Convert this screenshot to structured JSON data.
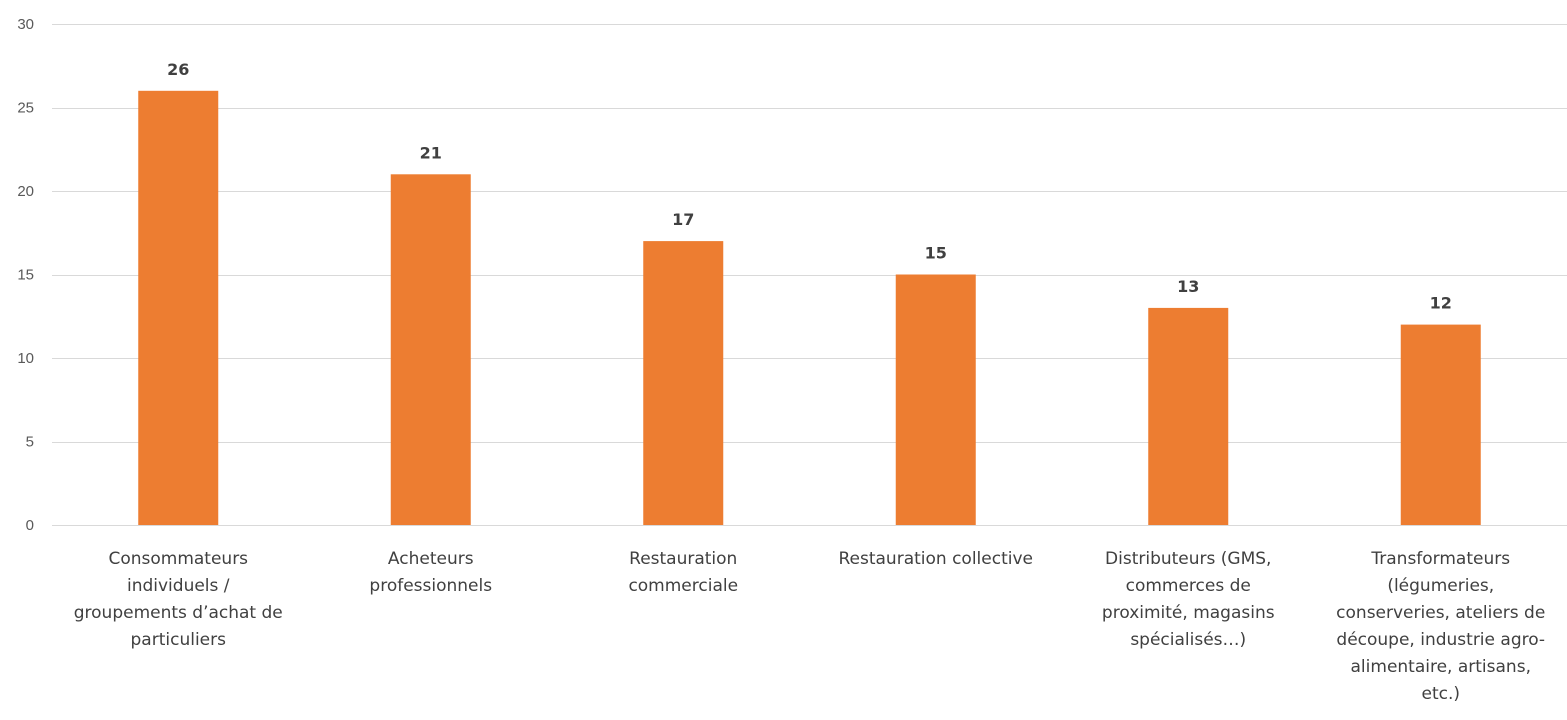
{
  "chart_data": {
    "type": "bar",
    "categories": [
      [
        "Consommateurs",
        "individuels /",
        "groupements d’achat de",
        "particuliers"
      ],
      [
        "Acheteurs",
        "professionnels"
      ],
      [
        "Restauration",
        "commerciale"
      ],
      [
        "Restauration collective"
      ],
      [
        "Distributeurs (GMS,",
        "commerces de",
        "proximité,  magasins",
        "spécialisés…)"
      ],
      [
        "Transformateurs",
        "(légumeries,",
        "conserveries, ateliers de",
        "découpe, industrie agro-",
        "alimentaire, artisans,",
        "etc.)"
      ]
    ],
    "values": [
      26,
      21,
      17,
      15,
      13,
      12
    ],
    "ylim": [
      0,
      30
    ],
    "yticks": [
      0,
      5,
      10,
      15,
      20,
      25,
      30
    ],
    "grid": true,
    "data_labels": true,
    "color": "#ed7d31"
  }
}
